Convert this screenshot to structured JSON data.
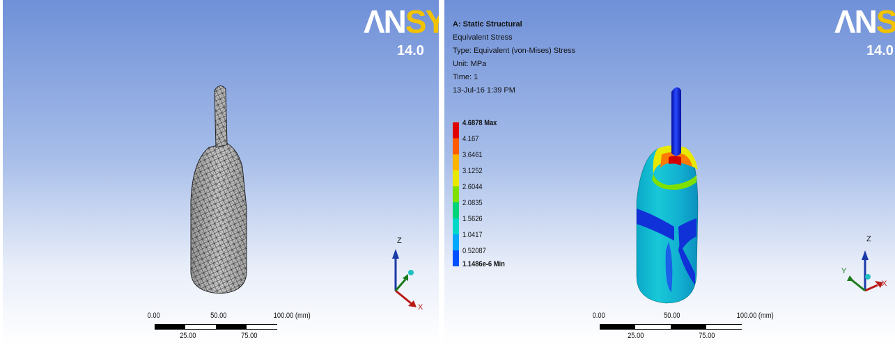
{
  "brand": {
    "logo_text_a": "ΛN",
    "logo_text_b": "SYS",
    "version": "14.0"
  },
  "left_view": {
    "scale": {
      "t0": "0.00",
      "t50": "50.00",
      "t100": "100.00 (mm)",
      "t25": "25.00",
      "t75": "75.00"
    },
    "triad": {
      "z": "Z",
      "x": "X"
    }
  },
  "right_view": {
    "info": {
      "title": "A: Static Structural",
      "result": "Equivalent Stress",
      "type": "Type: Equivalent (von-Mises) Stress",
      "unit": "Unit: MPa",
      "time": "Time: 1",
      "date": "13-Jul-16 1:39 PM"
    },
    "legend": [
      {
        "label": "4.6878 Max",
        "color": "#e00000",
        "bold": true
      },
      {
        "label": "4.167",
        "color": "#ff5a00"
      },
      {
        "label": "3.6461",
        "color": "#ffb400"
      },
      {
        "label": "3.1252",
        "color": "#e8e800"
      },
      {
        "label": "2.6044",
        "color": "#7fe000"
      },
      {
        "label": "2.0835",
        "color": "#00d47a"
      },
      {
        "label": "1.5626",
        "color": "#00d8c8"
      },
      {
        "label": "1.0417",
        "color": "#00a8ff"
      },
      {
        "label": "0.52087",
        "color": "#0050ff"
      },
      {
        "label": "1.1486e-6 Min",
        "color": "#0000c8",
        "bold": true
      }
    ],
    "scale": {
      "t0": "0.00",
      "t50": "50.00",
      "t100": "100.00 (mm)",
      "t25": "25.00",
      "t75": "75.00"
    },
    "triad": {
      "z": "Z",
      "x": "X",
      "y": "Y"
    }
  }
}
